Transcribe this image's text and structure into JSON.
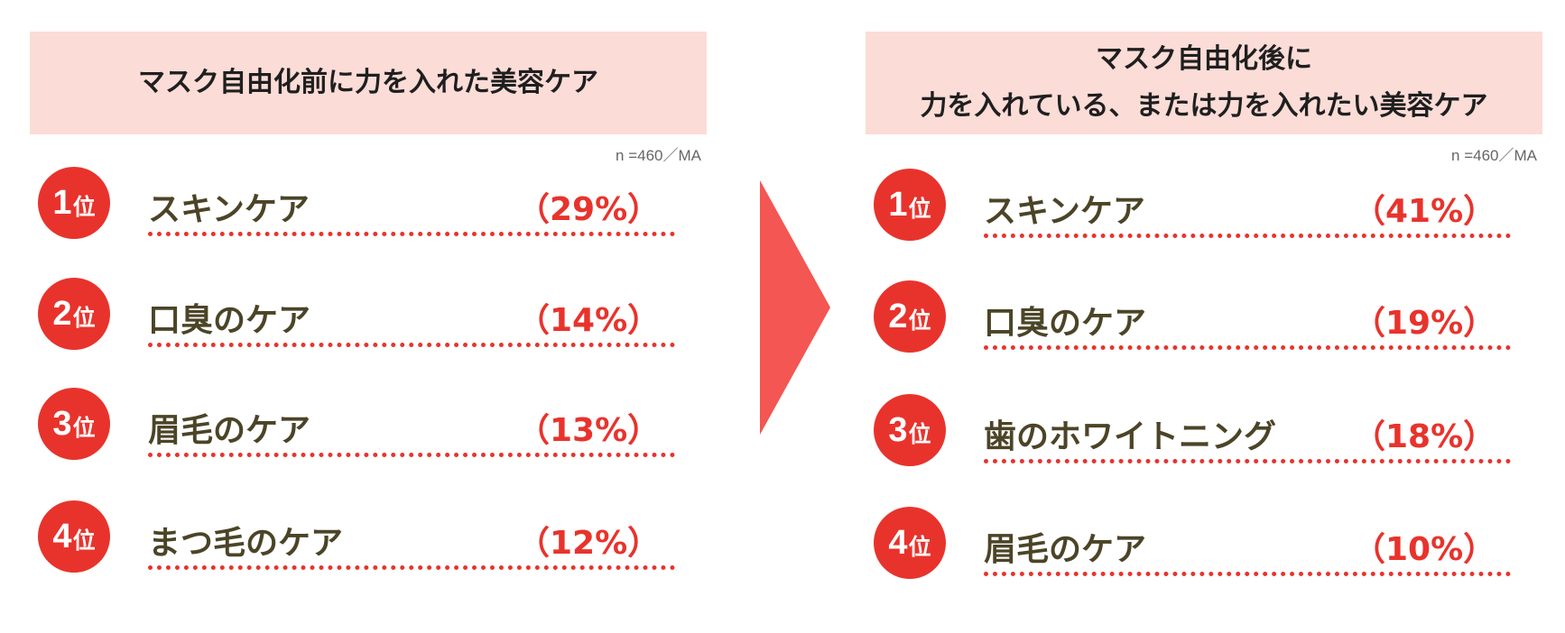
{
  "colors": {
    "accent": "#e8332c",
    "header_bg": "#fbdcd7",
    "arrow": "#f35653",
    "label_text": "#4b4427"
  },
  "chart_data": [
    {
      "type": "table",
      "title": "マスク自由化前に力を入れた美容ケア",
      "note": "n =460／MA",
      "rank_unit": "位",
      "items": [
        {
          "rank": "1",
          "label": "スキンケア",
          "value": 29,
          "pct": "（29%）"
        },
        {
          "rank": "2",
          "label": "口臭のケア",
          "value": 14,
          "pct": "（14%）"
        },
        {
          "rank": "3",
          "label": "眉毛のケア",
          "value": 13,
          "pct": "（13%）"
        },
        {
          "rank": "4",
          "label": "まつ毛のケア",
          "value": 12,
          "pct": "（12%）"
        }
      ]
    },
    {
      "type": "table",
      "title_lines": [
        "マスク自由化後に",
        "力を入れている、または力を入れたい美容ケア"
      ],
      "note": "n =460／MA",
      "rank_unit": "位",
      "items": [
        {
          "rank": "1",
          "label": "スキンケア",
          "value": 41,
          "pct": "（41%）"
        },
        {
          "rank": "2",
          "label": "口臭のケア",
          "value": 19,
          "pct": "（19%）"
        },
        {
          "rank": "3",
          "label": "歯のホワイトニング",
          "value": 18,
          "pct": "（18%）"
        },
        {
          "rank": "4",
          "label": "眉毛のケア",
          "value": 10,
          "pct": "（10%）"
        }
      ]
    }
  ]
}
